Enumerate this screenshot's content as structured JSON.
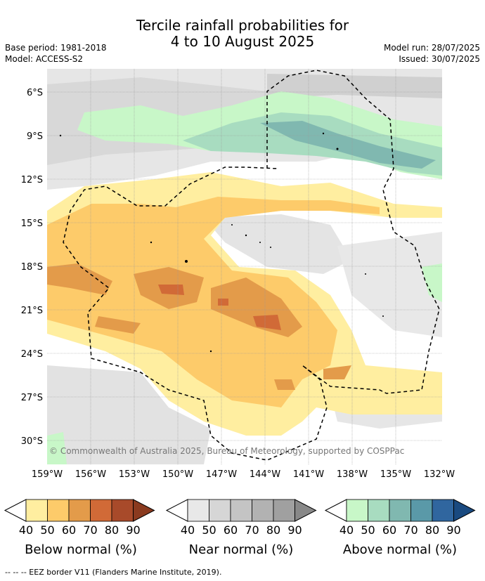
{
  "title": {
    "line1": "Tercile rainfall probabilities for",
    "line2": "4 to 10 August 2025"
  },
  "meta": {
    "base_period": "Base period: 1981-2018",
    "model": "Model: ACCESS-S2",
    "model_run": "Model run: 28/07/2025",
    "issued": "Issued: 30/07/2025"
  },
  "map": {
    "lat_labels": [
      "6°S",
      "9°S",
      "12°S",
      "15°S",
      "18°S",
      "21°S",
      "24°S",
      "27°S",
      "30°S"
    ],
    "lon_labels": [
      "159°W",
      "156°W",
      "153°W",
      "150°W",
      "147°W",
      "144°W",
      "141°W",
      "138°W",
      "135°W",
      "132°W"
    ],
    "credit": "© Commonwealth of Australia 2025, Bureau of Meteorology, supported by COSPPac"
  },
  "colorbars": [
    {
      "name": "below",
      "label": "Below normal (%)",
      "ticks": [
        "40",
        "50",
        "60",
        "70",
        "80",
        "90"
      ],
      "colors": [
        "#ffeea0",
        "#fdcb6a",
        "#e39b4a",
        "#d16a37",
        "#a84a2a",
        "#8a3a1f"
      ]
    },
    {
      "name": "near",
      "label": "Near normal (%)",
      "ticks": [
        "40",
        "50",
        "60",
        "70",
        "80",
        "90"
      ],
      "colors": [
        "#e8e8e8",
        "#d6d6d6",
        "#c4c4c4",
        "#b2b2b2",
        "#a0a0a0",
        "#888888"
      ]
    },
    {
      "name": "above",
      "label": "Above normal (%)",
      "ticks": [
        "40",
        "50",
        "60",
        "70",
        "80",
        "90"
      ],
      "colors": [
        "#c8f7c8",
        "#a8dcc0",
        "#80b8b0",
        "#5a99a8",
        "#30669f",
        "#1a4a80"
      ]
    }
  ],
  "footer": "-- -- -- EEZ border V11 (Flanders Marine Institute, 2019)."
}
